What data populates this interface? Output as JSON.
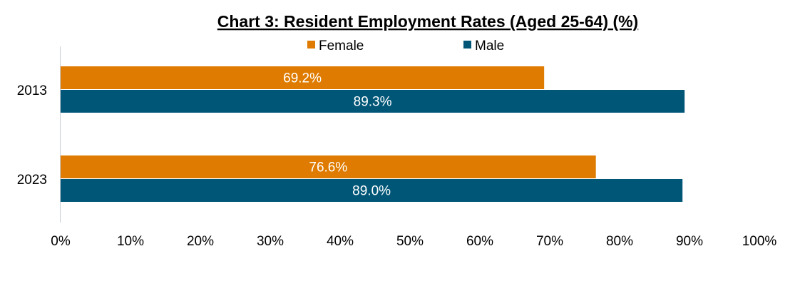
{
  "chart_data": {
    "type": "bar",
    "orientation": "horizontal",
    "title": "Chart 3: Resident Employment Rates (Aged 25-64) (%)",
    "categories": [
      "2013",
      "2023"
    ],
    "series": [
      {
        "name": "Female",
        "color": "#DE7B00",
        "values": [
          69.2,
          76.6
        ],
        "labels": [
          "69.2%",
          "76.6%"
        ]
      },
      {
        "name": "Male",
        "color": "#005677",
        "values": [
          89.3,
          89.0
        ],
        "labels": [
          "89.3%",
          "89.0%"
        ]
      }
    ],
    "xlim": [
      0,
      100
    ],
    "xticks": [
      "0%",
      "10%",
      "20%",
      "30%",
      "40%",
      "50%",
      "60%",
      "70%",
      "80%",
      "90%",
      "100%"
    ],
    "xlabel": "",
    "ylabel": "",
    "grid": false,
    "legend": "top-center"
  }
}
